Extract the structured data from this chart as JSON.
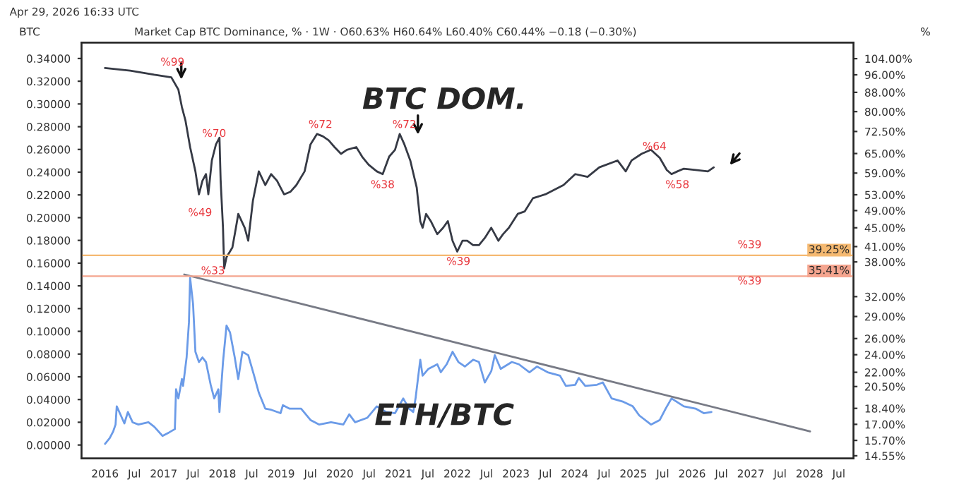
{
  "chart_data": {
    "type": "line",
    "title": "Market Cap BTC Dominance, % · 1W · O60.63% H60.64% L60.40% C60.44% −0.18 (−0.30%)",
    "subtitle": "Apr 29, 2026 16:33 UTC",
    "annotations": [
      "%99",
      "%49",
      "%70",
      "%33",
      "%72",
      "%38",
      "%72",
      "%39",
      "%64",
      "%58",
      "%39",
      "%39"
    ],
    "ylabel": "BTC",
    "y2label": "%",
    "log": "y2",
    "legend": false,
    "grid": false,
    "xlim": [
      2015.6,
      2028.75
    ],
    "xticks": [
      2016,
      {
        "value": 2016.5,
        "label": "Jul"
      },
      2017,
      {
        "value": 2017.5,
        "label": "Jul"
      },
      2018,
      {
        "value": 2018.5,
        "label": "Jul"
      },
      2019,
      {
        "value": 2019.5,
        "label": "Jul"
      },
      2020,
      {
        "value": 2020.5,
        "label": "Jul"
      },
      2021,
      {
        "value": 2021.5,
        "label": "Jul"
      },
      2022,
      {
        "value": 2022.5,
        "label": "Jul"
      },
      2023,
      {
        "value": 2023.5,
        "label": "Jul"
      },
      2024,
      {
        "value": 2024.5,
        "label": "Jul"
      },
      2025,
      {
        "value": 2025.5,
        "label": "Jul"
      },
      2026,
      {
        "value": 2026.5,
        "label": "Jul"
      },
      2027,
      {
        "value": 2027.5,
        "label": "Jul"
      },
      2028,
      {
        "value": 2028.5,
        "label": "Jul"
      }
    ],
    "ylim": [
      -0.0118,
      0.354
    ],
    "yticks": [
      {
        "value": 0,
        "label": "0.00000"
      },
      {
        "value": 0.02,
        "label": "0.02000"
      },
      {
        "value": 0.04,
        "label": "0.04000"
      },
      {
        "value": 0.06,
        "label": "0.06000"
      },
      {
        "value": 0.08,
        "label": "0.08000"
      },
      {
        "value": 0.1,
        "label": "0.10000"
      },
      {
        "value": 0.12,
        "label": "0.12000"
      },
      {
        "value": 0.14,
        "label": "0.14000"
      },
      {
        "value": 0.16,
        "label": "0.16000"
      },
      {
        "value": 0.18,
        "label": "0.18000"
      },
      {
        "value": 0.2,
        "label": "0.20000"
      },
      {
        "value": 0.22,
        "label": "0.22000"
      },
      {
        "value": 0.24,
        "label": "0.24000"
      },
      {
        "value": 0.26,
        "label": "0.26000"
      },
      {
        "value": 0.28,
        "label": "0.28000"
      },
      {
        "value": 0.3,
        "label": "0.30000"
      },
      {
        "value": 0.32,
        "label": "0.32000"
      },
      {
        "value": 0.34,
        "label": "0.34000"
      }
    ],
    "y2lim": [
      14.36,
      112.6
    ],
    "y2ticks": [
      {
        "value": 104,
        "label": "104.00%"
      },
      {
        "value": 96,
        "label": "96.00%"
      },
      {
        "value": 88,
        "label": "88.00%"
      },
      {
        "value": 80,
        "label": "80.00%"
      },
      {
        "value": 72.5,
        "label": "72.50%"
      },
      {
        "value": 65,
        "label": "65.00%"
      },
      {
        "value": 59,
        "label": "59.00%"
      },
      {
        "value": 53,
        "label": "53.00%"
      },
      {
        "value": 49,
        "label": "49.00%"
      },
      {
        "value": 45,
        "label": "45.00%"
      },
      {
        "value": 41,
        "label": "41.00%"
      },
      {
        "value": 38,
        "label": "38.00%"
      },
      {
        "value": 32,
        "label": "32.00%"
      },
      {
        "value": 29,
        "label": "29.00%"
      },
      {
        "value": 26,
        "label": "26.00%"
      },
      {
        "value": 24,
        "label": "24.00%"
      },
      {
        "value": 22,
        "label": "22.00%"
      },
      {
        "value": 20.5,
        "label": "20.50%"
      },
      {
        "value": 18.4,
        "label": "18.40%"
      },
      {
        "value": 17,
        "label": "17.00%"
      },
      {
        "value": 15.7,
        "label": "15.70%"
      },
      {
        "value": 14.55,
        "label": "14.55%"
      }
    ],
    "ref_lines": [
      {
        "axis": "y2",
        "value": 39.25,
        "label": "39.25%",
        "color": "#f5b971"
      },
      {
        "axis": "y2",
        "value": 35.41,
        "label": "35.41%",
        "color": "#f5a58f"
      }
    ],
    "series": [
      {
        "name": "BTC DOM.",
        "axis": "y2",
        "color": "#363a45",
        "x": [
          2016.0,
          2016.43,
          2016.84,
          2017.13,
          2017.25,
          2017.31,
          2017.37,
          2017.45,
          2017.54,
          2017.6,
          2017.66,
          2017.72,
          2017.76,
          2017.82,
          2017.89,
          2017.95,
          2017.97,
          2018.01,
          2018.03,
          2018.07,
          2018.17,
          2018.23,
          2018.27,
          2018.38,
          2018.44,
          2018.52,
          2018.62,
          2018.73,
          2018.83,
          2018.93,
          2019.05,
          2019.16,
          2019.26,
          2019.4,
          2019.5,
          2019.61,
          2019.71,
          2019.81,
          2019.91,
          2020.02,
          2020.12,
          2020.28,
          2020.38,
          2020.49,
          2020.63,
          2020.73,
          2020.84,
          2020.94,
          2021.02,
          2021.1,
          2021.2,
          2021.31,
          2021.37,
          2021.41,
          2021.47,
          2021.55,
          2021.66,
          2021.76,
          2021.84,
          2021.92,
          2022.0,
          2022.09,
          2022.17,
          2022.27,
          2022.37,
          2022.47,
          2022.58,
          2022.64,
          2022.7,
          2022.78,
          2022.88,
          2023.03,
          2023.15,
          2023.29,
          2023.5,
          2023.81,
          2024.01,
          2024.22,
          2024.42,
          2024.73,
          2024.87,
          2024.97,
          2025.14,
          2025.3,
          2025.45,
          2025.57,
          2025.65,
          2025.75,
          2025.86,
          2026.06,
          2026.27,
          2026.37
        ],
        "values": [
          99.3,
          98.0,
          96.0,
          94.8,
          89.2,
          81.8,
          76.6,
          67.1,
          59.5,
          53.1,
          56.8,
          58.7,
          53.1,
          62.8,
          68.0,
          70.3,
          56.8,
          45.0,
          36.8,
          38.9,
          40.8,
          45.0,
          48.2,
          45.0,
          42.2,
          51.5,
          59.5,
          55.6,
          58.7,
          56.8,
          53.1,
          53.8,
          55.6,
          59.5,
          68.0,
          71.6,
          70.8,
          69.4,
          67.1,
          64.9,
          66.2,
          67.1,
          64.0,
          61.5,
          59.5,
          58.7,
          64.0,
          66.2,
          71.6,
          68.0,
          62.8,
          54.9,
          46.5,
          45.0,
          48.2,
          46.5,
          43.6,
          45.0,
          46.5,
          42.2,
          40.0,
          42.2,
          42.2,
          41.3,
          41.3,
          42.8,
          45.0,
          43.6,
          42.2,
          43.6,
          45.0,
          48.2,
          48.8,
          52.1,
          53.1,
          55.6,
          58.7,
          57.9,
          60.7,
          62.8,
          59.5,
          62.8,
          64.9,
          66.2,
          63.6,
          59.9,
          58.7,
          59.5,
          60.3,
          59.9,
          59.5,
          60.7
        ]
      },
      {
        "name": "ETH/BTC",
        "color": "#6b9be8",
        "x": [
          2016.0,
          2016.08,
          2016.14,
          2016.18,
          2016.2,
          2016.27,
          2016.33,
          2016.39,
          2016.47,
          2016.57,
          2016.74,
          2016.84,
          2016.98,
          2017.09,
          2017.19,
          2017.21,
          2017.25,
          2017.31,
          2017.33,
          2017.39,
          2017.43,
          2017.45,
          2017.5,
          2017.54,
          2017.6,
          2017.66,
          2017.72,
          2017.8,
          2017.86,
          2017.93,
          2017.95,
          2018.01,
          2018.07,
          2018.13,
          2018.21,
          2018.27,
          2018.34,
          2018.44,
          2018.54,
          2018.62,
          2018.73,
          2018.83,
          2018.99,
          2019.03,
          2019.14,
          2019.34,
          2019.5,
          2019.65,
          2019.85,
          2020.06,
          2020.16,
          2020.26,
          2020.47,
          2020.63,
          2020.79,
          2020.94,
          2021.08,
          2021.18,
          2021.25,
          2021.29,
          2021.37,
          2021.41,
          2021.51,
          2021.66,
          2021.72,
          2021.82,
          2021.92,
          2022.02,
          2022.13,
          2022.27,
          2022.37,
          2022.47,
          2022.58,
          2022.64,
          2022.74,
          2022.93,
          2023.05,
          2023.23,
          2023.36,
          2023.54,
          2023.75,
          2023.85,
          2024.01,
          2024.07,
          2024.18,
          2024.38,
          2024.48,
          2024.63,
          2024.83,
          2024.99,
          2025.1,
          2025.3,
          2025.45,
          2025.55,
          2025.65,
          2025.86,
          2026.06,
          2026.2,
          2026.33
        ],
        "values": [
          0.001,
          0.006,
          0.012,
          0.018,
          0.034,
          0.026,
          0.019,
          0.029,
          0.02,
          0.018,
          0.02,
          0.016,
          0.008,
          0.011,
          0.014,
          0.049,
          0.041,
          0.058,
          0.052,
          0.077,
          0.108,
          0.147,
          0.124,
          0.082,
          0.073,
          0.077,
          0.073,
          0.053,
          0.041,
          0.049,
          0.029,
          0.073,
          0.105,
          0.099,
          0.077,
          0.058,
          0.082,
          0.079,
          0.061,
          0.046,
          0.032,
          0.031,
          0.028,
          0.035,
          0.032,
          0.032,
          0.022,
          0.018,
          0.02,
          0.018,
          0.027,
          0.02,
          0.024,
          0.034,
          0.029,
          0.028,
          0.041,
          0.032,
          0.029,
          0.041,
          0.075,
          0.061,
          0.067,
          0.071,
          0.064,
          0.071,
          0.082,
          0.073,
          0.069,
          0.075,
          0.073,
          0.055,
          0.065,
          0.079,
          0.067,
          0.073,
          0.071,
          0.064,
          0.069,
          0.064,
          0.061,
          0.052,
          0.053,
          0.059,
          0.052,
          0.053,
          0.055,
          0.041,
          0.038,
          0.034,
          0.026,
          0.018,
          0.022,
          0.032,
          0.041,
          0.034,
          0.032,
          0.028,
          0.029
        ]
      },
      {
        "color": "#787b86",
        "x": [
          2017.35,
          2028.01
        ],
        "values": [
          0.15,
          0.012
        ]
      }
    ]
  }
}
